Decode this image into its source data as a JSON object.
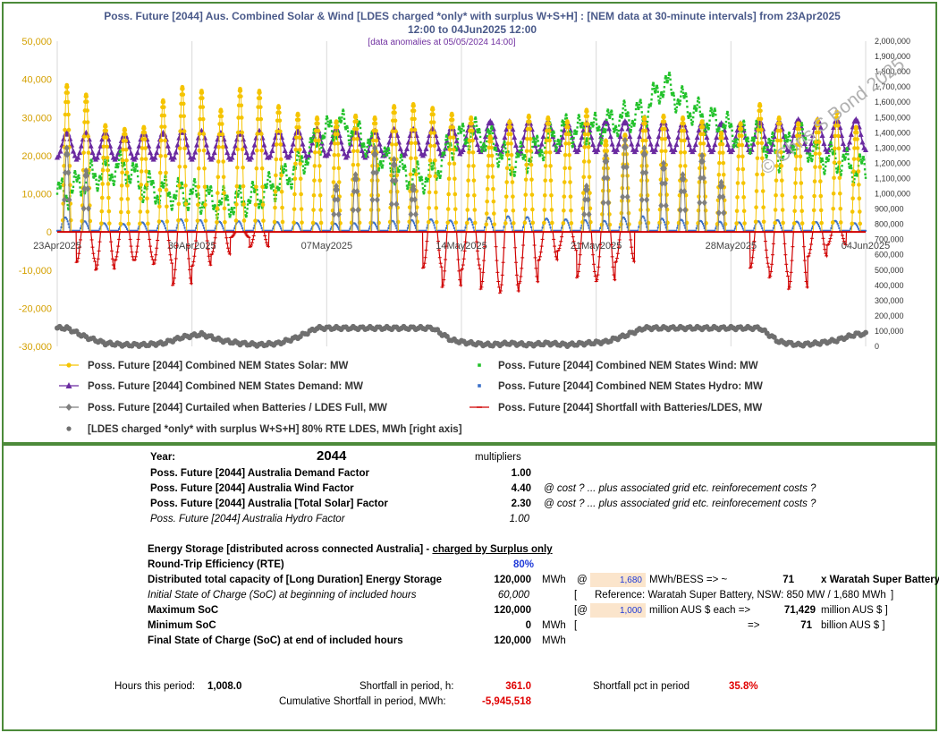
{
  "chart_data": {
    "type": "line",
    "title_line1": "Poss. Future [2044] Aus. Combined Solar & Wind [LDES charged *only* with surplus W+S+H] :  [NEM data at 30-minute intervals] from 23Apr2025",
    "title_line2": "12:00 to 04Jun2025 12:00",
    "subtitle": "[data anomalies at 05/05/2024 14:00]",
    "watermark": "© Chris S Bond  2025",
    "left_axis": {
      "min": -30000,
      "max": 50000,
      "ticks": [
        "50,000",
        "40,000",
        "30,000",
        "20,000",
        "10,000",
        "0",
        "-10,000",
        "-20,000",
        "-30,000"
      ]
    },
    "right_axis": {
      "min": 0,
      "max": 2000000,
      "ticks": [
        "2,000,000",
        "1,900,000",
        "1,800,000",
        "1,700,000",
        "1,600,000",
        "1,500,000",
        "1,400,000",
        "1,300,000",
        "1,200,000",
        "1,100,000",
        "1,000,000",
        "900,000",
        "800,000",
        "700,000",
        "600,000",
        "500,000",
        "400,000",
        "300,000",
        "200,000",
        "100,000",
        "0"
      ]
    },
    "x_tick_labels": [
      "23Apr2025",
      "30Apr2025",
      "07May2025",
      "14May2025",
      "21May2025",
      "28May2025",
      "04Jun2025"
    ],
    "x_days": 42,
    "series": [
      {
        "name": "Poss. Future [2044] Combined NEM States Solar: MW",
        "color": "#f5c400",
        "marker": "circle",
        "daily_peak": [
          38500,
          36000,
          28000,
          27000,
          27500,
          34500,
          38000,
          37000,
          32000,
          37500,
          37000,
          33000,
          31000,
          30000,
          29000,
          30500,
          30000,
          33000,
          33500,
          32500,
          31000,
          30000,
          25000,
          29000,
          30500,
          30000,
          29000,
          32000,
          24000,
          25500,
          30000,
          30500,
          30000,
          29000,
          26000,
          28500,
          33500,
          30000,
          28500,
          29500,
          31500,
          27500
        ]
      },
      {
        "name": "Poss. Future [2044] Combined NEM States Wind: MW",
        "color": "#22c22a",
        "marker": "square",
        "daily_level": [
          10000,
          14000,
          16000,
          17000,
          12000,
          10500,
          10000,
          9000,
          7500,
          8000,
          9500,
          13000,
          17000,
          24000,
          28000,
          27000,
          21000,
          17000,
          14000,
          15000,
          23000,
          26000,
          24000,
          18000,
          20000,
          24000,
          27000,
          26000,
          28000,
          30000,
          31000,
          39000,
          34000,
          30000,
          28000,
          25000,
          25000,
          20000,
          25000,
          20000,
          19000,
          16500
        ]
      },
      {
        "name": "Poss. Future [2044] Combined NEM States Demand: MW",
        "color": "#6a2aa0",
        "marker": "triangle",
        "daily_range": [
          [
            19500,
            26000
          ],
          [
            19000,
            26000
          ],
          [
            19000,
            26000
          ],
          [
            19000,
            25500
          ],
          [
            19000,
            26000
          ],
          [
            19000,
            26000
          ],
          [
            19000,
            26500
          ],
          [
            19000,
            26500
          ],
          [
            19000,
            26000
          ],
          [
            19000,
            26000
          ],
          [
            19000,
            26500
          ],
          [
            19500,
            26500
          ],
          [
            19500,
            26500
          ],
          [
            19500,
            27000
          ],
          [
            20000,
            27000
          ],
          [
            19500,
            26500
          ],
          [
            19500,
            26500
          ],
          [
            20000,
            27000
          ],
          [
            20000,
            27000
          ],
          [
            20000,
            27000
          ],
          [
            20000,
            27500
          ],
          [
            21000,
            28500
          ],
          [
            21000,
            29000
          ],
          [
            20500,
            29000
          ],
          [
            20500,
            29000
          ],
          [
            21000,
            29000
          ],
          [
            21000,
            28500
          ],
          [
            21000,
            28500
          ],
          [
            21000,
            29000
          ],
          [
            21000,
            29000
          ],
          [
            21000,
            29000
          ],
          [
            21000,
            29000
          ],
          [
            21000,
            28500
          ],
          [
            21000,
            28500
          ],
          [
            21000,
            28500
          ],
          [
            21000,
            28500
          ],
          [
            21000,
            29000
          ],
          [
            21000,
            29000
          ],
          [
            21000,
            29500
          ],
          [
            21000,
            29500
          ],
          [
            21000,
            29500
          ],
          [
            21500,
            29500
          ]
        ]
      },
      {
        "name": "Poss. Future [2044] Combined NEM States Hydro: MW",
        "color": "#3a6fc8",
        "marker": "star",
        "daily_peak": [
          3500,
          2500,
          2000,
          1800,
          2200,
          2600,
          3000,
          2800,
          2400,
          2500,
          2700,
          2300,
          2100,
          2000,
          1900,
          2000,
          2200,
          2600,
          2800,
          3000,
          2700,
          3200,
          3500,
          3800,
          3600,
          3200,
          3000,
          2800,
          2600,
          3500,
          3800,
          3200,
          2900,
          2600,
          2400,
          2200,
          2500,
          2800,
          2400,
          2300,
          2600,
          2000
        ]
      },
      {
        "name": "Poss. Future [2044]  Curtailed when Batteries / LDES Full, MW",
        "color": "#7f7f7f",
        "marker": "diamond",
        "daily_peak": [
          22000,
          16000,
          0,
          0,
          0,
          0,
          0,
          0,
          0,
          0,
          0,
          0,
          0,
          0,
          12000,
          15000,
          22000,
          19000,
          12000,
          0,
          0,
          0,
          0,
          0,
          0,
          0,
          0,
          12000,
          20000,
          24000,
          22000,
          18000,
          15000,
          20000,
          13000,
          0,
          0,
          0,
          0,
          0,
          0,
          0
        ]
      },
      {
        "name": "Poss. Future [2044]  Shortfall with Batteries/LDES, MW",
        "color": "#d00000",
        "marker": "plus",
        "daily_trough": [
          0,
          -8000,
          -10000,
          -7500,
          -7500,
          -8500,
          -14000,
          -9000,
          -6000,
          -1500,
          -4000,
          0,
          0,
          0,
          0,
          0,
          0,
          0,
          0,
          -9500,
          -14500,
          -10000,
          -15000,
          -16000,
          -13500,
          -7500,
          -5000,
          -12000,
          -13000,
          -8000,
          0,
          0,
          0,
          0,
          0,
          0,
          -9500,
          -12000,
          -15000,
          -6500,
          -3500,
          0
        ]
      },
      {
        "name": "[LDES charged *only* with surplus W+S+H] 80% RTE LDES, MWh [right axis]",
        "color": "#6f6f6f",
        "marker": "circle",
        "daily_soc": [
          120000,
          60000,
          20000,
          10000,
          10000,
          20000,
          60000,
          80000,
          40000,
          20000,
          10000,
          20000,
          60000,
          120000,
          120000,
          120000,
          120000,
          120000,
          120000,
          120000,
          40000,
          20000,
          10000,
          20000,
          10000,
          20000,
          10000,
          20000,
          30000,
          70000,
          120000,
          120000,
          120000,
          120000,
          120000,
          120000,
          120000,
          30000,
          10000,
          20000,
          40000,
          80000
        ]
      }
    ]
  },
  "table": {
    "year_label": "Year:",
    "year_value": "2044",
    "multipliers_label": "multipliers",
    "factors": [
      {
        "label": "Poss. Future [2044]  Australia Demand Factor",
        "value": "1.00",
        "note": ""
      },
      {
        "label": "Poss. Future [2044]  Australia Wind Factor",
        "value": "4.40",
        "note": "@ cost ?    ... plus associated grid etc. reinforecement costs ?"
      },
      {
        "label": "Poss. Future [2044]  Australia [Total Solar] Factor",
        "value": "2.30",
        "note": "@ cost ?    ... plus associated grid etc. reinforecement costs ?"
      },
      {
        "label": "Poss. Future [2044]  Australia Hydro Factor",
        "value": "1.00",
        "note": ""
      }
    ],
    "storage_heading": "Energy Storage [distributed across connected Australia] - ",
    "storage_heading_suffix": "charged by Surplus only",
    "rte_label": "Round-Trip Efficiency (RTE)",
    "rte_value": "80%",
    "capacity_label": "Distributed total capacity of [Long Duration] Energy Storage",
    "capacity_value": "120,000",
    "unit_mwh": "MWh",
    "at": "@",
    "bess_mwh": "1,680",
    "bess_text": "MWh/BESS => ~",
    "bess_count": "71",
    "waratah": "x Waratah Super Battery",
    "initial_label": "Initial State of Charge (SoC) at beginning of included hours",
    "initial_value": "60,000",
    "bracket_open": "[",
    "reference_text": "Reference: Waratah Super Battery, NSW: 850 MW / 1,680 MWh",
    "bracket_close": "]",
    "max_label": "Maximum SoC",
    "max_value": "120,000",
    "at_bracket": "[@",
    "unit_cost": "1,000",
    "million_each": "million AUS $ each =>",
    "million_total": "71,429",
    "million_label": "million AUS $ ]",
    "min_label": "Minimum SoC",
    "min_value": "0",
    "arrow": "=>",
    "billion_total": "71",
    "billion_label": "billion AUS $  ]",
    "final_label": "Final State of Charge (SoC) at end of included hours",
    "final_value": "120,000",
    "hours_label": "Hours this period:",
    "hours_value": "1,008.0",
    "shortfall_h_label": "Shortfall in period, h:",
    "shortfall_h_value": "361.0",
    "shortfall_pct_label": "Shortfall pct in period",
    "shortfall_pct_value": "35.8%",
    "cum_label": "Cumulative Shortfall in period, MWh:",
    "cum_value": "-5,945,518"
  }
}
